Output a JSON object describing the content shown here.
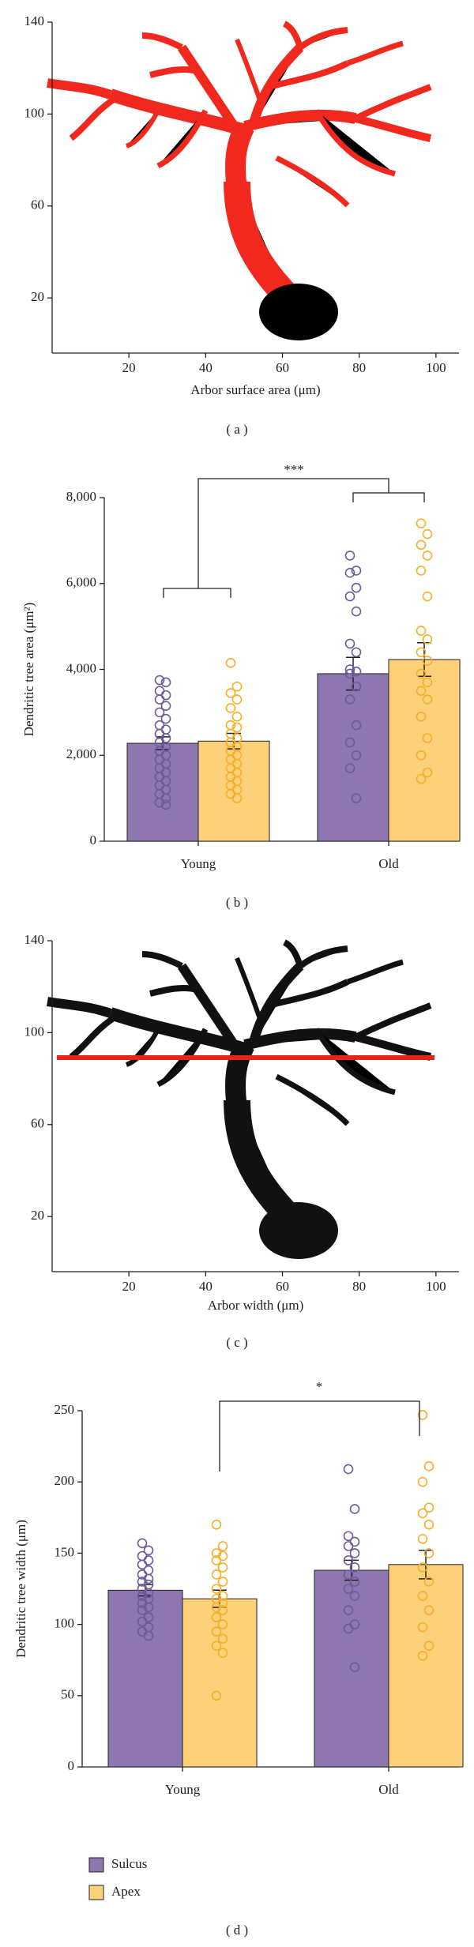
{
  "chart_data": [
    {
      "type": "image",
      "xlabel": "Arbor surface area (μm)",
      "caption": "( a )",
      "xlim": [
        0,
        106
      ],
      "ylim": [
        -4,
        140
      ],
      "xticks": [
        20,
        40,
        60,
        80,
        100
      ],
      "yticks": [
        20,
        60,
        100,
        140
      ]
    },
    {
      "type": "bar",
      "ylabel": "Dendritic tree area (μm²)",
      "caption": "( b )",
      "categories": [
        "Young",
        "Old"
      ],
      "ylim": [
        0,
        8000
      ],
      "yticks": [
        0,
        {
          "value": 2000,
          "label": "2,000"
        },
        {
          "value": 4000,
          "label": "4,000"
        },
        {
          "value": 6000,
          "label": "6,000"
        },
        {
          "value": 8000,
          "label": "8,000"
        }
      ],
      "annotations": [
        "***"
      ],
      "series": [
        {
          "color": "#8e76b0",
          "values": [
            2280,
            3900
          ],
          "errors": [
            150,
            380
          ],
          "points": [
            [
              3750,
              3700,
              3500,
              3400,
              3300,
              3150,
              3000,
              2850,
              2700,
              2600,
              2500,
              2400,
              2300,
              2200,
              2100,
              2000,
              1900,
              1800,
              1700,
              1600,
              1500,
              1400,
              1300,
              1200,
              1100,
              1000,
              900,
              850
            ],
            [
              6650,
              6300,
              6250,
              5900,
              5700,
              5350,
              4600,
              4400,
              4000,
              3950,
              3900,
              3600,
              3300,
              2700,
              2300,
              2000,
              1700,
              1000
            ]
          ]
        },
        {
          "color": "#fdd17a",
          "values": [
            2330,
            4230
          ],
          "errors": [
            180,
            390
          ],
          "points": [
            [
              4150,
              3600,
              3450,
              3300,
              3100,
              2900,
              2700,
              2650,
              2500,
              2400,
              2300,
              2200,
              2100,
              2000,
              1900,
              1800,
              1700,
              1600,
              1500,
              1400,
              1300,
              1200,
              1100,
              1000
            ],
            [
              7400,
              7150,
              6900,
              6650,
              6300,
              5700,
              4900,
              4700,
              4400,
              4200,
              3900,
              3700,
              3500,
              3300,
              2900,
              2400,
              2000,
              1600,
              1450
            ]
          ]
        }
      ]
    },
    {
      "type": "image",
      "xlabel": "Arbor width (μm)",
      "caption": "( c )",
      "xlim": [
        0,
        106
      ],
      "ylim": [
        -4,
        140
      ],
      "xticks": [
        20,
        40,
        60,
        80,
        100
      ],
      "yticks": [
        20,
        60,
        100,
        140
      ]
    },
    {
      "type": "bar",
      "ylabel": "Dendritic tree width (μm)",
      "caption": "( d )",
      "categories": [
        "Young",
        "Old"
      ],
      "ylim": [
        0,
        250
      ],
      "yticks": [
        0,
        50,
        100,
        150,
        200,
        250
      ],
      "annotations": [
        "*"
      ],
      "series": [
        {
          "name": "Sulcus",
          "color": "#8e76b0",
          "values": [
            124,
            138
          ],
          "errors": [
            4,
            7
          ],
          "points": [
            [
              157,
              152,
              148,
              145,
              142,
              138,
              135,
              132,
              130,
              128,
              125,
              122,
              120,
              118,
              115,
              112,
              110,
              105,
              102,
              98,
              95,
              92
            ],
            [
              209,
              181,
              162,
              158,
              155,
              150,
              145,
              140,
              135,
              130,
              125,
              120,
              110,
              100,
              97,
              70
            ]
          ]
        },
        {
          "name": "Apex",
          "color": "#fdd17a",
          "values": [
            118,
            142
          ],
          "errors": [
            6,
            10
          ],
          "points": [
            [
              170,
              155,
              150,
              148,
              145,
              140,
              135,
              130,
              125,
              120,
              118,
              115,
              112,
              110,
              105,
              100,
              95,
              90,
              85,
              80,
              50
            ],
            [
              247,
              211,
              200,
              182,
              178,
              170,
              160,
              150,
              140,
              130,
              120,
              110,
              98,
              85,
              78
            ]
          ]
        }
      ]
    }
  ]
}
